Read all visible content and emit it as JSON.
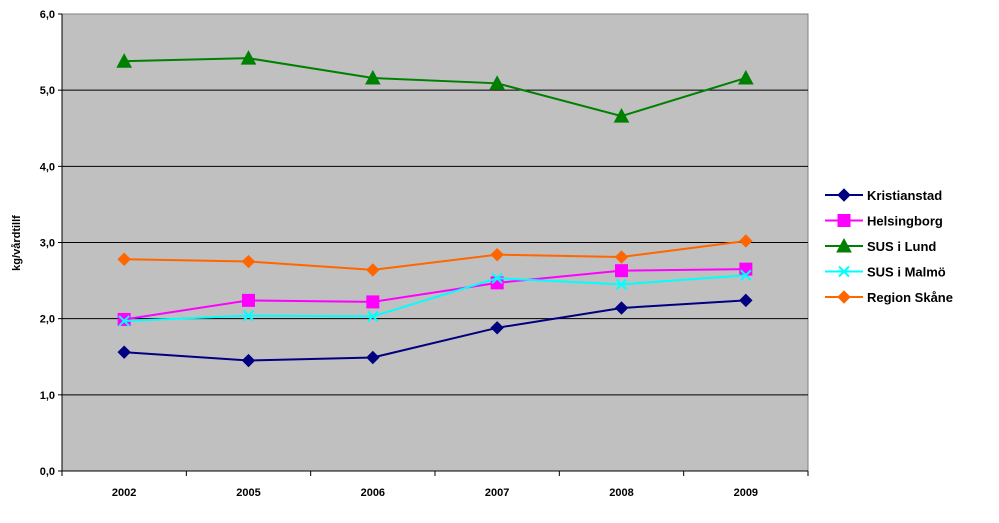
{
  "chart_data": {
    "type": "line",
    "categories": [
      "2002",
      "2005",
      "2006",
      "2007",
      "2008",
      "2009"
    ],
    "ylabel": "kg/vårdtillf",
    "ylim": [
      0,
      6
    ],
    "yticks": [
      "0,0",
      "1,0",
      "2,0",
      "3,0",
      "4,0",
      "5,0",
      "6,0"
    ],
    "grid": "horizontal",
    "legend_position": "right",
    "plot_background": "#c0c0c0",
    "series": [
      {
        "name": "Kristianstad",
        "color": "#000080",
        "marker": "diamond",
        "values": [
          1.56,
          1.45,
          1.49,
          1.88,
          2.14,
          2.24
        ]
      },
      {
        "name": "Helsingborg",
        "color": "#ff00ff",
        "marker": "square",
        "values": [
          1.99,
          2.24,
          2.22,
          2.47,
          2.63,
          2.65
        ]
      },
      {
        "name": "SUS i Lund",
        "color": "#008000",
        "marker": "triangle",
        "values": [
          5.38,
          5.42,
          5.16,
          5.09,
          4.66,
          5.16
        ]
      },
      {
        "name": "SUS i Malmö",
        "color": "#00ffff",
        "marker": "x",
        "values": [
          1.97,
          2.04,
          2.03,
          2.53,
          2.45,
          2.57
        ]
      },
      {
        "name": "Region Skåne",
        "color": "#ff6600",
        "marker": "diamond",
        "values": [
          2.78,
          2.75,
          2.64,
          2.84,
          2.81,
          3.02
        ]
      }
    ]
  }
}
